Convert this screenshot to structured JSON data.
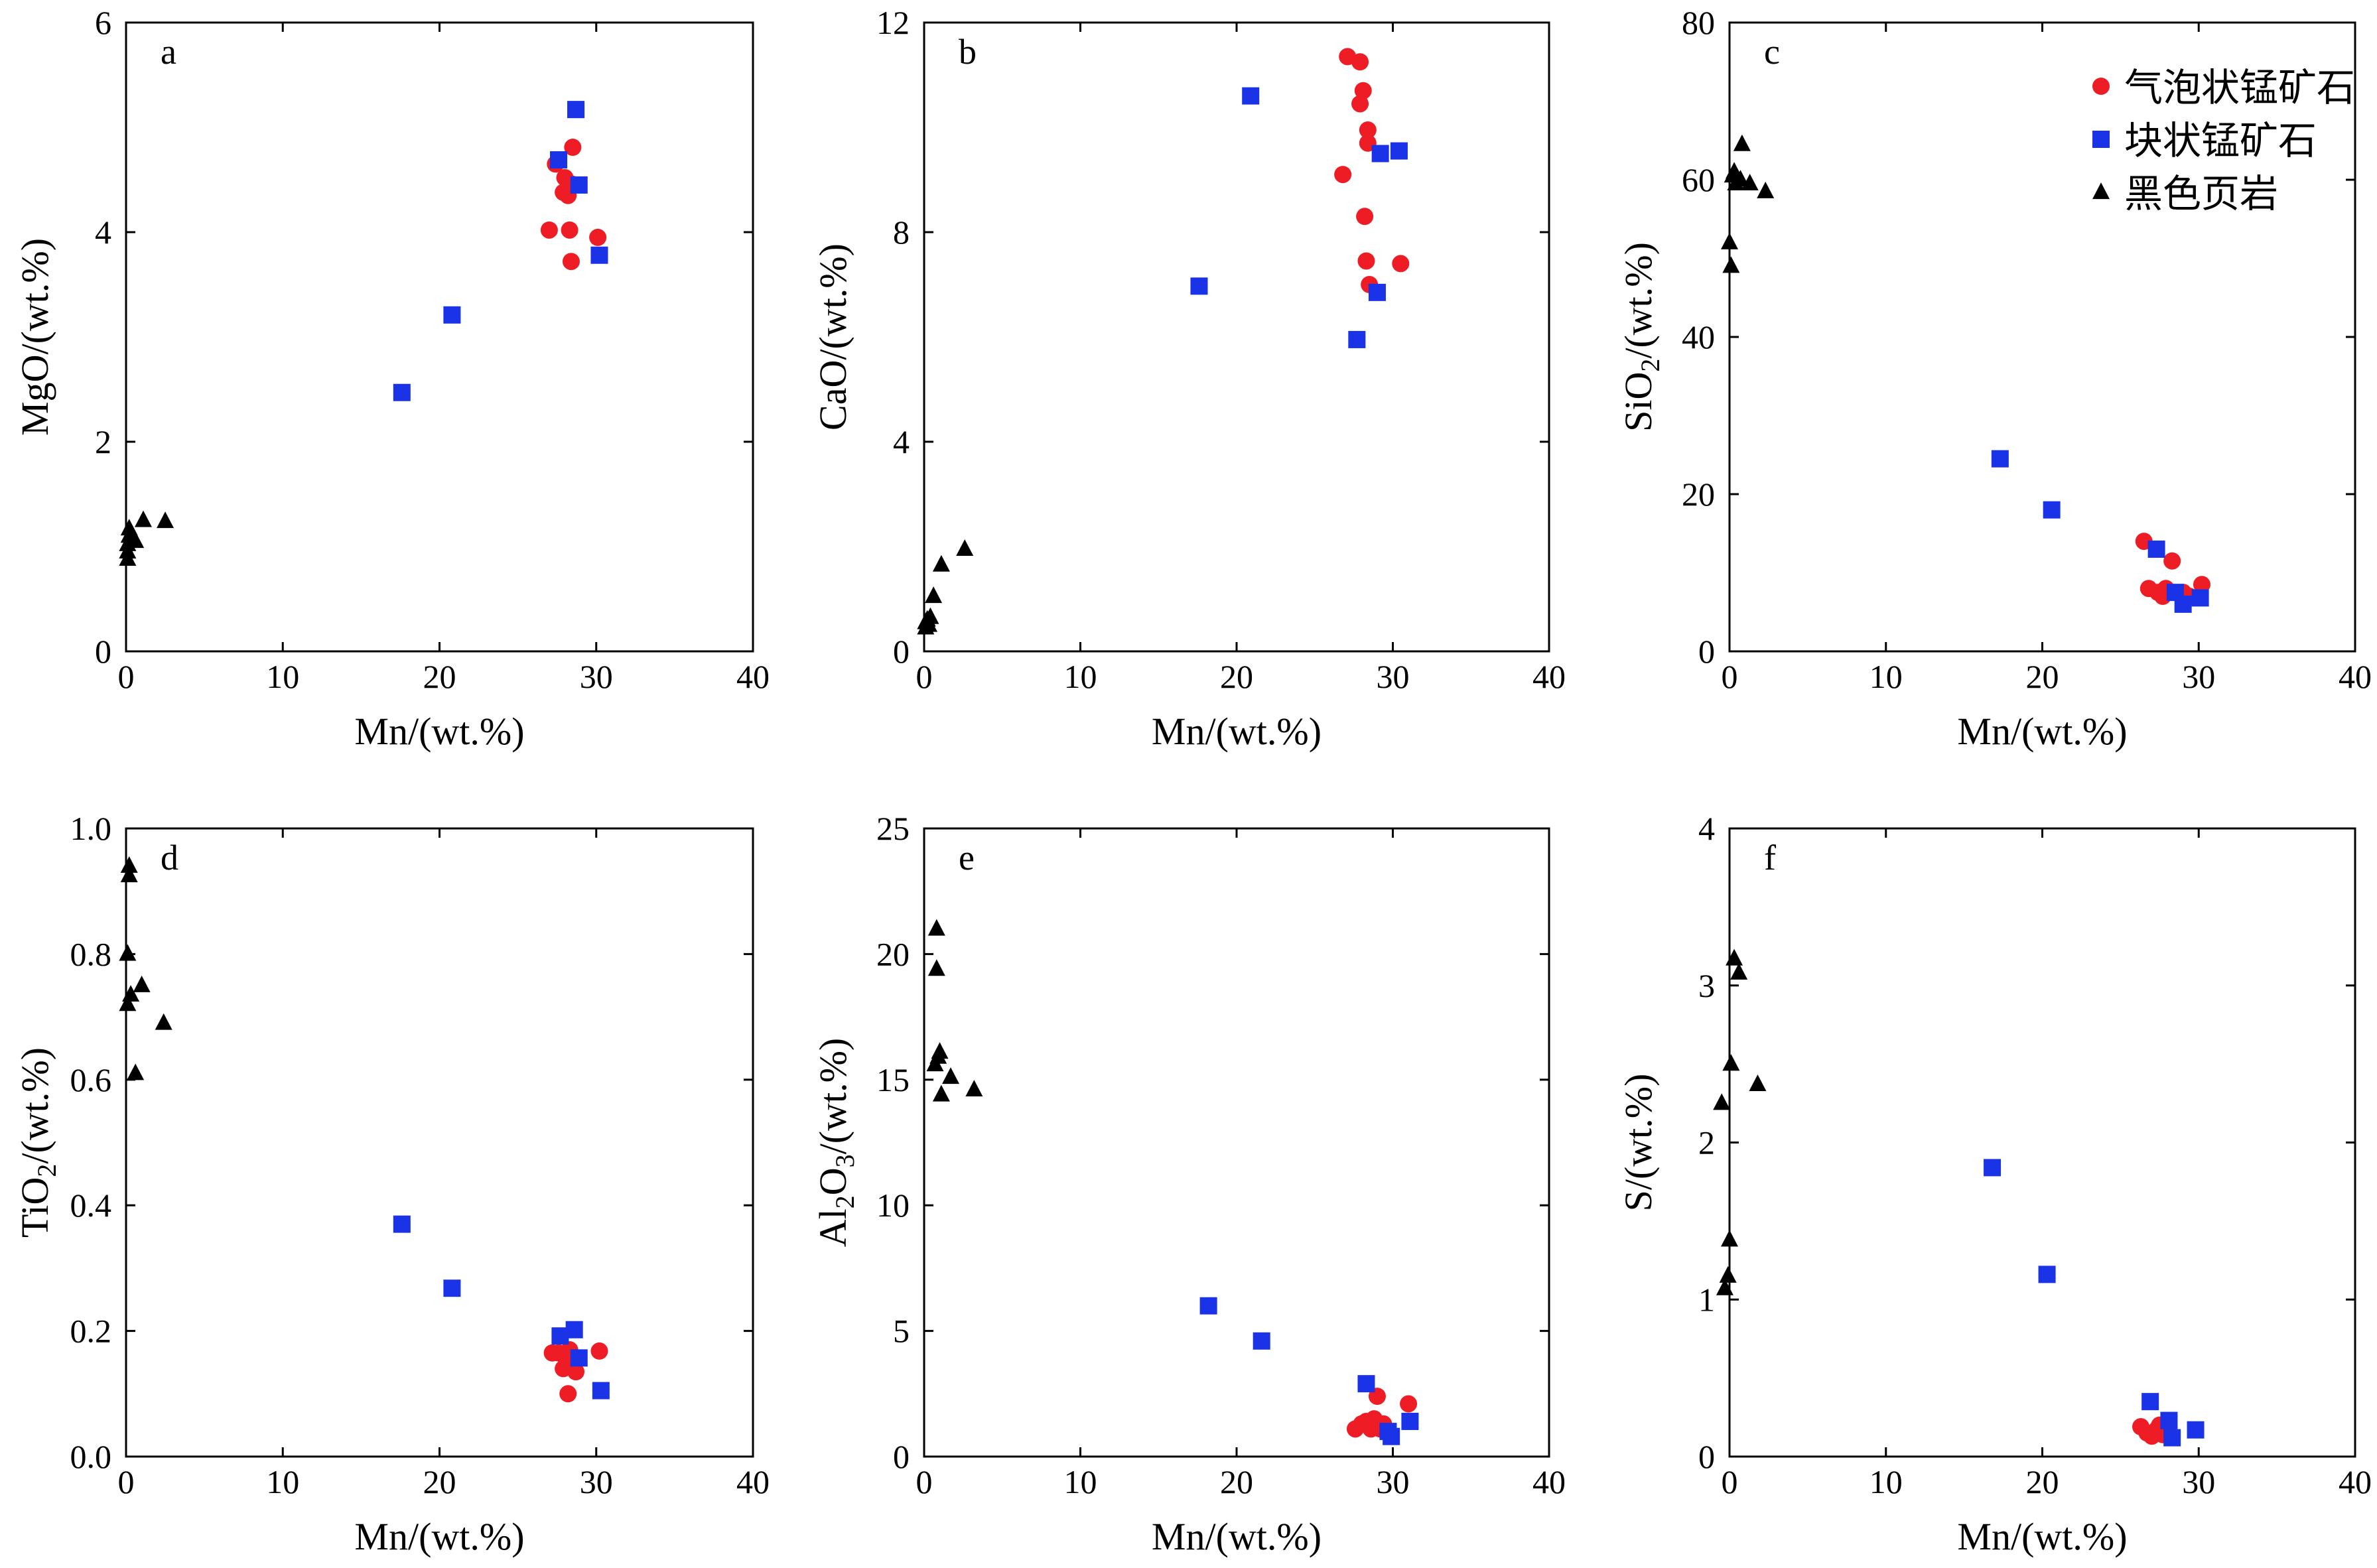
{
  "legend": [
    {
      "key": "bubble",
      "label": "气泡状锰矿石",
      "marker": "circle",
      "color": "#ee1c25"
    },
    {
      "key": "massive",
      "label": "块状锰矿石",
      "marker": "square",
      "color": "#1a33e6"
    },
    {
      "key": "shale",
      "label": "黑色页岩",
      "marker": "triangle",
      "color": "#000000"
    }
  ],
  "chart_data": [
    {
      "type": "scatter",
      "panel": "a",
      "xlabel": "Mn/(wt.%)",
      "ylabel": {
        "pre": "MgO/(wt.%)",
        "sub": "",
        "post": ""
      },
      "xlim": [
        0,
        40
      ],
      "ylim": [
        0,
        6
      ],
      "xticks": [
        0,
        10,
        20,
        30,
        40
      ],
      "xtick_labels": [
        "0",
        "10",
        "20",
        "30",
        "40"
      ],
      "yticks": [
        0,
        2,
        4,
        6
      ],
      "ytick_labels": [
        "0",
        "2",
        "4",
        "6"
      ],
      "series": [
        {
          "key": "bubble",
          "points": [
            [
              27.0,
              4.02
            ],
            [
              27.4,
              4.65
            ],
            [
              27.9,
              4.38
            ],
            [
              28.0,
              4.52
            ],
            [
              28.2,
              4.35
            ],
            [
              28.3,
              4.02
            ],
            [
              28.4,
              4.46
            ],
            [
              28.4,
              3.72
            ],
            [
              28.5,
              4.81
            ],
            [
              30.1,
              3.95
            ]
          ]
        },
        {
          "key": "massive",
          "points": [
            [
              17.6,
              2.47
            ],
            [
              20.8,
              3.21
            ],
            [
              27.6,
              4.69
            ],
            [
              28.7,
              5.17
            ],
            [
              28.9,
              4.45
            ],
            [
              30.2,
              3.78
            ]
          ]
        },
        {
          "key": "shale",
          "points": [
            [
              0.1,
              0.88
            ],
            [
              0.1,
              0.95
            ],
            [
              0.1,
              1.02
            ],
            [
              0.2,
              1.1
            ],
            [
              0.2,
              1.17
            ],
            [
              0.4,
              1.08
            ],
            [
              0.6,
              1.05
            ],
            [
              1.1,
              1.25
            ],
            [
              2.5,
              1.24
            ]
          ]
        }
      ]
    },
    {
      "type": "scatter",
      "panel": "b",
      "xlabel": "Mn/(wt.%)",
      "ylabel": {
        "pre": "CaO/(wt.%)",
        "sub": "",
        "post": ""
      },
      "xlim": [
        0,
        40
      ],
      "ylim": [
        0,
        12
      ],
      "xticks": [
        0,
        10,
        20,
        30,
        40
      ],
      "xtick_labels": [
        "0",
        "10",
        "20",
        "30",
        "40"
      ],
      "yticks": [
        0,
        4,
        8,
        12
      ],
      "ytick_labels": [
        "0",
        "4",
        "8",
        "12"
      ],
      "series": [
        {
          "key": "bubble",
          "points": [
            [
              26.8,
              9.1
            ],
            [
              27.1,
              11.35
            ],
            [
              27.9,
              11.25
            ],
            [
              27.9,
              10.45
            ],
            [
              28.1,
              10.7
            ],
            [
              28.2,
              8.3
            ],
            [
              28.3,
              7.45
            ],
            [
              28.4,
              9.95
            ],
            [
              28.4,
              9.7
            ],
            [
              28.5,
              7.0
            ],
            [
              30.5,
              7.4
            ]
          ]
        },
        {
          "key": "massive",
          "points": [
            [
              17.6,
              6.97
            ],
            [
              20.9,
              10.6
            ],
            [
              27.7,
              5.95
            ],
            [
              29.0,
              6.85
            ],
            [
              29.2,
              9.5
            ],
            [
              30.4,
              9.55
            ]
          ]
        },
        {
          "key": "shale",
          "points": [
            [
              0.1,
              0.45
            ],
            [
              0.1,
              0.55
            ],
            [
              0.2,
              0.6
            ],
            [
              0.3,
              0.5
            ],
            [
              0.4,
              0.65
            ],
            [
              0.6,
              1.05
            ],
            [
              1.1,
              1.65
            ],
            [
              2.6,
              1.95
            ]
          ]
        }
      ]
    },
    {
      "type": "scatter",
      "panel": "c",
      "xlabel": "Mn/(wt.%)",
      "ylabel": {
        "pre": "SiO",
        "sub": "2",
        "post": "/(wt.%)"
      },
      "xlim": [
        0,
        40
      ],
      "ylim": [
        0,
        80
      ],
      "xticks": [
        0,
        10,
        20,
        30,
        40
      ],
      "xtick_labels": [
        "0",
        "10",
        "20",
        "30",
        "40"
      ],
      "yticks": [
        0,
        20,
        40,
        60,
        80
      ],
      "ytick_labels": [
        "0",
        "20",
        "40",
        "60",
        "80"
      ],
      "series": [
        {
          "key": "bubble",
          "points": [
            [
              26.5,
              14.0
            ],
            [
              26.8,
              8.0
            ],
            [
              27.4,
              7.5
            ],
            [
              27.7,
              7.0
            ],
            [
              27.9,
              8.0
            ],
            [
              28.1,
              7.5
            ],
            [
              28.3,
              11.5
            ],
            [
              29.0,
              7.5
            ],
            [
              29.4,
              7.0
            ],
            [
              30.2,
              8.5
            ]
          ]
        },
        {
          "key": "massive",
          "points": [
            [
              17.3,
              24.5
            ],
            [
              20.6,
              18.0
            ],
            [
              27.3,
              13.0
            ],
            [
              28.5,
              7.5
            ],
            [
              29.0,
              6.0
            ],
            [
              30.1,
              6.8
            ]
          ]
        },
        {
          "key": "shale",
          "points": [
            [
              0.0,
              52.0
            ],
            [
              0.1,
              49.0
            ],
            [
              0.2,
              60.5
            ],
            [
              0.3,
              61.0
            ],
            [
              0.4,
              59.5
            ],
            [
              0.7,
              60.0
            ],
            [
              0.8,
              64.5
            ],
            [
              1.3,
              59.5
            ],
            [
              2.3,
              58.5
            ]
          ]
        }
      ]
    },
    {
      "type": "scatter",
      "panel": "d",
      "xlabel": "Mn/(wt.%)",
      "ylabel": {
        "pre": "TiO",
        "sub": "2",
        "post": "/(wt.%)"
      },
      "xlim": [
        0,
        40
      ],
      "ylim": [
        0,
        1.0
      ],
      "xticks": [
        0,
        10,
        20,
        30,
        40
      ],
      "xtick_labels": [
        "0",
        "10",
        "20",
        "30",
        "40"
      ],
      "yticks": [
        0,
        0.2,
        0.4,
        0.6,
        0.8,
        1.0
      ],
      "ytick_labels": [
        "0.0",
        "0.2",
        "0.4",
        "0.6",
        "0.8",
        "1.0"
      ],
      "series": [
        {
          "key": "bubble",
          "points": [
            [
              27.2,
              0.165
            ],
            [
              27.6,
              0.165
            ],
            [
              27.9,
              0.14
            ],
            [
              28.1,
              0.155
            ],
            [
              28.2,
              0.1
            ],
            [
              28.3,
              0.17
            ],
            [
              28.5,
              0.145
            ],
            [
              28.7,
              0.135
            ],
            [
              30.2,
              0.168
            ]
          ]
        },
        {
          "key": "massive",
          "points": [
            [
              17.6,
              0.37
            ],
            [
              20.8,
              0.268
            ],
            [
              27.7,
              0.192
            ],
            [
              28.6,
              0.202
            ],
            [
              28.9,
              0.157
            ],
            [
              30.3,
              0.105
            ]
          ]
        },
        {
          "key": "shale",
          "points": [
            [
              0.1,
              0.72
            ],
            [
              0.1,
              0.8
            ],
            [
              0.2,
              0.94
            ],
            [
              0.2,
              0.925
            ],
            [
              0.3,
              0.735
            ],
            [
              0.6,
              0.61
            ],
            [
              1.0,
              0.75
            ],
            [
              2.4,
              0.69
            ]
          ]
        }
      ]
    },
    {
      "type": "scatter",
      "panel": "e",
      "xlabel": "Mn/(wt.%)",
      "ylabel": {
        "pre": "Al",
        "sub": "2",
        "post": "O",
        "sub2": "3",
        "post2": "/(wt.%)"
      },
      "xlim": [
        0,
        40
      ],
      "ylim": [
        0,
        25
      ],
      "xticks": [
        0,
        10,
        20,
        30,
        40
      ],
      "xtick_labels": [
        "0",
        "10",
        "20",
        "30",
        "40"
      ],
      "yticks": [
        0,
        5,
        10,
        15,
        20,
        25
      ],
      "ytick_labels": [
        "0",
        "5",
        "10",
        "15",
        "20",
        "25"
      ],
      "series": [
        {
          "key": "bubble",
          "points": [
            [
              27.6,
              1.1
            ],
            [
              28.0,
              1.3
            ],
            [
              28.3,
              1.4
            ],
            [
              28.6,
              1.1
            ],
            [
              28.8,
              1.5
            ],
            [
              29.0,
              2.4
            ],
            [
              29.2,
              1.1
            ],
            [
              29.4,
              1.3
            ],
            [
              31.0,
              2.1
            ]
          ]
        },
        {
          "key": "massive",
          "points": [
            [
              18.2,
              6.0
            ],
            [
              21.6,
              4.6
            ],
            [
              28.3,
              2.9
            ],
            [
              29.7,
              1.0
            ],
            [
              29.9,
              0.8
            ],
            [
              31.1,
              1.4
            ]
          ]
        },
        {
          "key": "shale",
          "points": [
            [
              0.7,
              15.6
            ],
            [
              0.8,
              19.4
            ],
            [
              0.8,
              21.0
            ],
            [
              0.9,
              15.9
            ],
            [
              1.0,
              16.1
            ],
            [
              1.1,
              14.4
            ],
            [
              1.7,
              15.1
            ],
            [
              3.2,
              14.6
            ]
          ]
        }
      ]
    },
    {
      "type": "scatter",
      "panel": "f",
      "xlabel": "Mn/(wt.%)",
      "ylabel": {
        "pre": "S/(wt.%)",
        "sub": "",
        "post": ""
      },
      "xlim": [
        0,
        40
      ],
      "ylim": [
        0,
        4
      ],
      "xticks": [
        0,
        10,
        20,
        30,
        40
      ],
      "xtick_labels": [
        "0",
        "10",
        "20",
        "30",
        "40"
      ],
      "yticks": [
        0,
        1,
        2,
        3,
        4
      ],
      "ytick_labels": [
        "0",
        "1",
        "2",
        "3",
        "4"
      ],
      "series": [
        {
          "key": "bubble",
          "points": [
            [
              26.3,
              0.19
            ],
            [
              26.7,
              0.15
            ],
            [
              27.0,
              0.13
            ],
            [
              27.3,
              0.17
            ],
            [
              27.5,
              0.2
            ],
            [
              27.7,
              0.14
            ],
            [
              27.9,
              0.18
            ],
            [
              28.0,
              0.16
            ]
          ]
        },
        {
          "key": "massive",
          "points": [
            [
              16.8,
              1.84
            ],
            [
              20.3,
              1.16
            ],
            [
              26.9,
              0.35
            ],
            [
              28.1,
              0.23
            ],
            [
              28.3,
              0.12
            ],
            [
              29.8,
              0.17
            ]
          ]
        },
        {
          "key": "shale",
          "points": [
            [
              -0.5,
              2.25
            ],
            [
              -0.3,
              1.07
            ],
            [
              -0.1,
              1.15
            ],
            [
              0.0,
              1.38
            ],
            [
              0.1,
              2.5
            ],
            [
              0.3,
              3.17
            ],
            [
              0.6,
              3.08
            ],
            [
              1.8,
              2.37
            ]
          ]
        }
      ]
    }
  ]
}
